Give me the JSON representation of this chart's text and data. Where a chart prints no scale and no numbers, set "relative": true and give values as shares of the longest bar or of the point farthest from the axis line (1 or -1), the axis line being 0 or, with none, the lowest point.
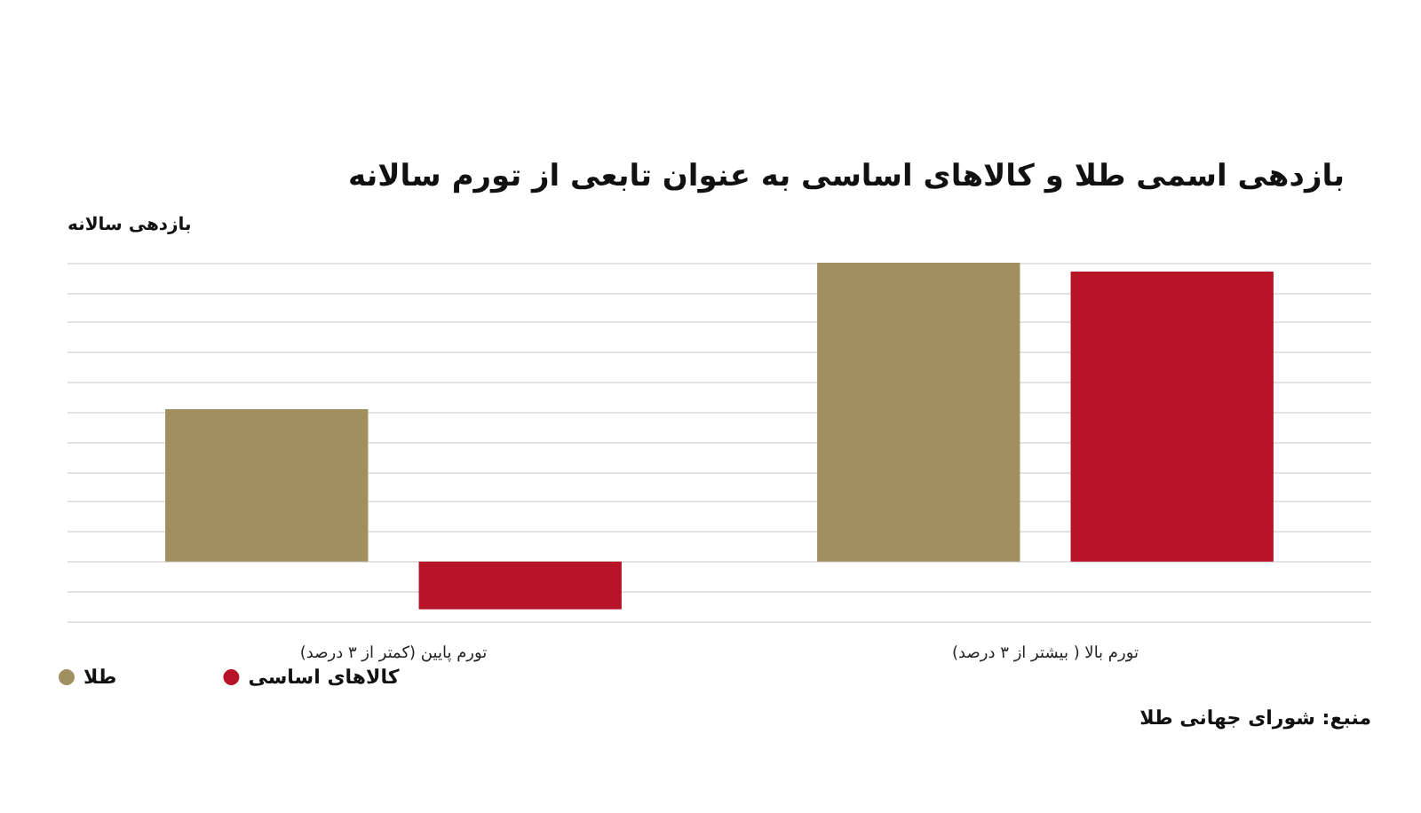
{
  "chart_data": {
    "type": "bar",
    "title": "بازدهی اسمی طلا و کالاهای اساسی به عنوان تابعی از تورم سالانه",
    "ylabel": "بازدهی سالانه",
    "categories": [
      "تورم پایین (کمتر از ۳ درصد)",
      "تورم بالا ( بیشتر از ۳ درصد)"
    ],
    "series": [
      {
        "name": "طلا",
        "color": "#a28f60",
        "values": [
          0.51,
          1
        ]
      },
      {
        "name": "کالاهای اساسی",
        "color": "#b81428",
        "values": [
          -0.16,
          0.97
        ]
      }
    ],
    "relative": true,
    "grid": "y",
    "legend": "bottom left",
    "annotations": [
      "منبع: شورای جهانی طلا"
    ]
  }
}
